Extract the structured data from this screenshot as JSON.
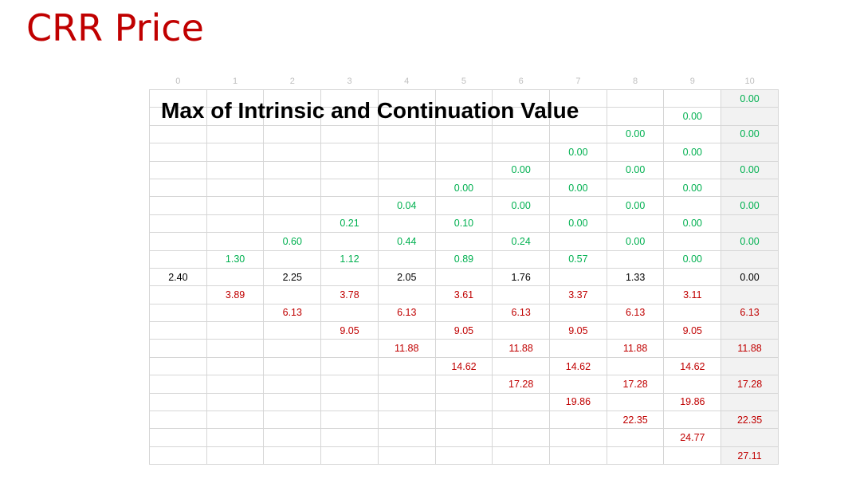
{
  "title": "CRR Price",
  "table_label": "Max of Intrinsic and Continuation Value",
  "header": [
    "0",
    "1",
    "2",
    "3",
    "4",
    "5",
    "6",
    "7",
    "8",
    "9",
    "10"
  ],
  "rows": [
    [
      "",
      "",
      "",
      "",
      "",
      "",
      "",
      "",
      "",
      "",
      "0.00"
    ],
    [
      "",
      "",
      "",
      "",
      "",
      "",
      "",
      "",
      "",
      "0.00",
      ""
    ],
    [
      "",
      "",
      "",
      "",
      "",
      "",
      "",
      "",
      "0.00",
      "",
      "0.00"
    ],
    [
      "",
      "",
      "",
      "",
      "",
      "",
      "",
      "0.00",
      "",
      "0.00",
      ""
    ],
    [
      "",
      "",
      "",
      "",
      "",
      "",
      "0.00",
      "",
      "0.00",
      "",
      "0.00"
    ],
    [
      "",
      "",
      "",
      "",
      "",
      "0.00",
      "",
      "0.00",
      "",
      "0.00",
      ""
    ],
    [
      "",
      "",
      "",
      "",
      "0.04",
      "",
      "0.00",
      "",
      "0.00",
      "",
      "0.00"
    ],
    [
      "",
      "",
      "",
      "0.21",
      "",
      "0.10",
      "",
      "0.00",
      "",
      "0.00",
      ""
    ],
    [
      "",
      "",
      "0.60",
      "",
      "0.44",
      "",
      "0.24",
      "",
      "0.00",
      "",
      "0.00"
    ],
    [
      "",
      "1.30",
      "",
      "1.12",
      "",
      "0.89",
      "",
      "0.57",
      "",
      "0.00",
      ""
    ],
    [
      "2.40",
      "",
      "2.25",
      "",
      "2.05",
      "",
      "1.76",
      "",
      "1.33",
      "",
      "0.00"
    ],
    [
      "",
      "3.89",
      "",
      "3.78",
      "",
      "3.61",
      "",
      "3.37",
      "",
      "3.11",
      ""
    ],
    [
      "",
      "",
      "6.13",
      "",
      "6.13",
      "",
      "6.13",
      "",
      "6.13",
      "",
      "6.13"
    ],
    [
      "",
      "",
      "",
      "9.05",
      "",
      "9.05",
      "",
      "9.05",
      "",
      "9.05",
      ""
    ],
    [
      "",
      "",
      "",
      "",
      "11.88",
      "",
      "11.88",
      "",
      "11.88",
      "",
      "11.88"
    ],
    [
      "",
      "",
      "",
      "",
      "",
      "14.62",
      "",
      "14.62",
      "",
      "14.62",
      ""
    ],
    [
      "",
      "",
      "",
      "",
      "",
      "",
      "17.28",
      "",
      "17.28",
      "",
      "17.28"
    ],
    [
      "",
      "",
      "",
      "",
      "",
      "",
      "",
      "19.86",
      "",
      "19.86",
      ""
    ],
    [
      "",
      "",
      "",
      "",
      "",
      "",
      "",
      "",
      "22.35",
      "",
      "22.35"
    ],
    [
      "",
      "",
      "",
      "",
      "",
      "",
      "",
      "",
      "",
      "24.77",
      ""
    ],
    [
      "",
      "",
      "",
      "",
      "",
      "",
      "",
      "",
      "",
      "",
      "27.11"
    ]
  ],
  "colors": {
    "title": "#c00000",
    "up_nodes": "#00b050",
    "center_nodes": "#000000",
    "down_nodes": "#c00000",
    "grid_line": "#d6d6d6",
    "last_column_fill": "#f2f2f2"
  }
}
